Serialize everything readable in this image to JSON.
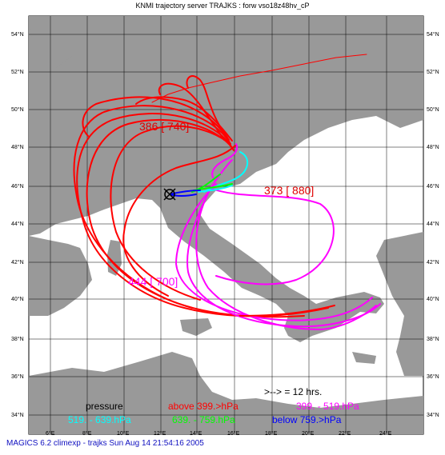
{
  "title": "KNMI trajectory server TRAJKS : forw vso18z48hv_cP",
  "latitude_labels": [
    "54°N",
    "52°N",
    "50°N",
    "48°N",
    "46°N",
    "44°N",
    "42°N",
    "40°N",
    "38°N",
    "36°N",
    "34°N"
  ],
  "longitude_labels": [
    "6°E",
    "8°E",
    "10°E",
    "12°E",
    "14°E",
    "16°E",
    "18°E",
    "20°E",
    "22°E",
    "24°E"
  ],
  "annotations": {
    "cluster_1": "386 [ 740]",
    "cluster_2": "373 [ 880]",
    "cluster_3": "444 [ 700]"
  },
  "legend": {
    "heading": "pressure",
    "arrow_note": ">--> = 12 hrs.",
    "above": "above 399.>hPa",
    "mid_high": "399. -  519.hPa",
    "mid_low_range": "519. -  639.hPa",
    "low_mid": "639. -  759.hPa",
    "below": "below 759.>hPa"
  },
  "colors": {
    "land": "#999999",
    "sea": "#ffffff",
    "grid": "#000000",
    "above": "#ff0000",
    "mid_high": "#ff00ff",
    "mid_low": "#00ffff",
    "low_mid": "#00ff00",
    "below": "#0000ff",
    "footer": "#1010c0"
  },
  "footer": "MAGICS 6.2 climexp - trajks Sun Aug 14 21:54:16 2005"
}
